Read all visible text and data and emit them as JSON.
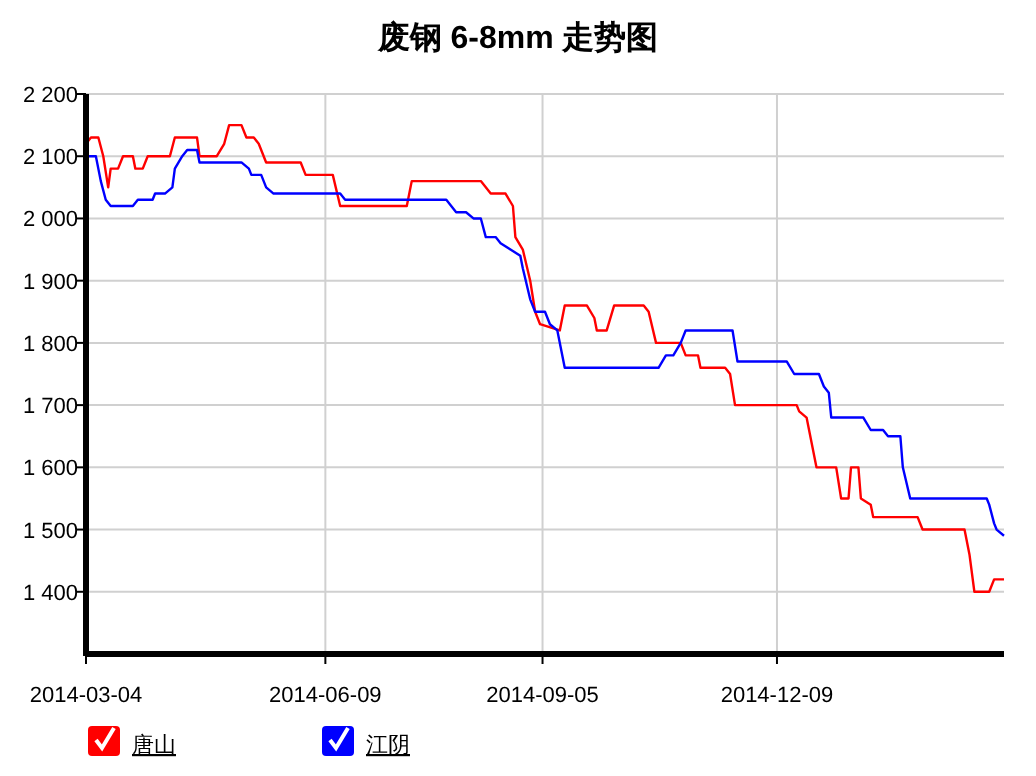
{
  "chart_data": {
    "type": "line",
    "title": "废钢 6-8mm 走势图",
    "xlim": [
      "2014-03-04",
      "2015-03-11"
    ],
    "xticks": [
      "2014-03-04",
      "2014-06-09",
      "2014-09-05",
      "2014-12-09"
    ],
    "ylim": [
      1300,
      2200
    ],
    "yticks": [
      {
        "value": 1400,
        "label": "1 400"
      },
      {
        "value": 1500,
        "label": "1 500"
      },
      {
        "value": 1600,
        "label": "1 600"
      },
      {
        "value": 1700,
        "label": "1 700"
      },
      {
        "value": 1800,
        "label": "1 800"
      },
      {
        "value": 1900,
        "label": "1 900"
      },
      {
        "value": 2000,
        "label": "2 000"
      },
      {
        "value": 2100,
        "label": "2 100"
      },
      {
        "value": 2200,
        "label": "2 200"
      }
    ],
    "grid": true,
    "legend": "bottom left",
    "series": [
      {
        "name": "唐山",
        "color": "#ff0000",
        "x": [
          "2014-03-04",
          "2014-03-06",
          "2014-03-09",
          "2014-03-11",
          "2014-03-13",
          "2014-03-14",
          "2014-03-17",
          "2014-03-19",
          "2014-03-23",
          "2014-03-24",
          "2014-03-27",
          "2014-03-29",
          "2014-04-07",
          "2014-04-09",
          "2014-04-18",
          "2014-04-19",
          "2014-04-26",
          "2014-04-29",
          "2014-05-01",
          "2014-05-06",
          "2014-05-08",
          "2014-05-11",
          "2014-05-13",
          "2014-05-16",
          "2014-05-30",
          "2014-06-01",
          "2014-06-12",
          "2014-06-15",
          "2014-07-12",
          "2014-07-14",
          "2014-08-11",
          "2014-08-13",
          "2014-08-15",
          "2014-08-21",
          "2014-08-24",
          "2014-08-25",
          "2014-08-28",
          "2014-08-31",
          "2014-09-02",
          "2014-09-04",
          "2014-09-12",
          "2014-09-14",
          "2014-09-23",
          "2014-09-26",
          "2014-09-27",
          "2014-10-01",
          "2014-10-04",
          "2014-10-16",
          "2014-10-18",
          "2014-10-21",
          "2014-10-31",
          "2014-11-02",
          "2014-11-07",
          "2014-11-08",
          "2014-11-18",
          "2014-11-20",
          "2014-11-22",
          "2014-12-17",
          "2014-12-18",
          "2014-12-21",
          "2014-12-25",
          "2015-01-02",
          "2015-01-04",
          "2015-01-07",
          "2015-01-08",
          "2015-01-11",
          "2015-01-12",
          "2015-01-16",
          "2015-01-17",
          "2015-02-04",
          "2015-02-06",
          "2015-02-23",
          "2015-02-25",
          "2015-02-27",
          "2015-03-05",
          "2015-03-07",
          "2015-03-11"
        ],
        "values": [
          2120,
          2130,
          2130,
          2100,
          2050,
          2080,
          2080,
          2100,
          2100,
          2080,
          2080,
          2100,
          2100,
          2130,
          2130,
          2100,
          2100,
          2120,
          2150,
          2150,
          2130,
          2130,
          2120,
          2090,
          2090,
          2070,
          2070,
          2020,
          2020,
          2060,
          2060,
          2050,
          2040,
          2040,
          2020,
          1970,
          1950,
          1900,
          1850,
          1830,
          1820,
          1860,
          1860,
          1840,
          1820,
          1820,
          1860,
          1860,
          1850,
          1800,
          1800,
          1780,
          1780,
          1760,
          1760,
          1750,
          1700,
          1700,
          1690,
          1680,
          1600,
          1600,
          1550,
          1550,
          1600,
          1600,
          1550,
          1540,
          1520,
          1520,
          1500,
          1500,
          1460,
          1400,
          1400,
          1420,
          1420
        ]
      },
      {
        "name": "江阴",
        "color": "#0000ff",
        "x": [
          "2014-03-05",
          "2014-03-08",
          "2014-03-10",
          "2014-03-12",
          "2014-03-14",
          "2014-03-23",
          "2014-03-25",
          "2014-03-31",
          "2014-04-01",
          "2014-04-05",
          "2014-04-08",
          "2014-04-09",
          "2014-04-12",
          "2014-04-14",
          "2014-04-18",
          "2014-04-19",
          "2014-05-06",
          "2014-05-09",
          "2014-05-10",
          "2014-05-14",
          "2014-05-16",
          "2014-05-19",
          "2014-06-15",
          "2014-06-17",
          "2014-07-28",
          "2014-08-01",
          "2014-08-05",
          "2014-08-08",
          "2014-08-11",
          "2014-08-13",
          "2014-08-17",
          "2014-08-19",
          "2014-08-23",
          "2014-08-27",
          "2014-08-28",
          "2014-08-31",
          "2014-09-02",
          "2014-09-06",
          "2014-09-08",
          "2014-09-11",
          "2014-09-14",
          "2014-10-22",
          "2014-10-25",
          "2014-10-28",
          "2014-10-31",
          "2014-11-01",
          "2014-11-02",
          "2014-11-21",
          "2014-11-23",
          "2014-12-13",
          "2014-12-16",
          "2014-12-26",
          "2014-12-28",
          "2014-12-30",
          "2014-12-31",
          "2015-01-13",
          "2015-01-16",
          "2015-01-21",
          "2015-01-23",
          "2015-01-28",
          "2015-01-29",
          "2015-02-01",
          "2015-03-04",
          "2015-03-05",
          "2015-03-07",
          "2015-03-08",
          "2015-03-11"
        ],
        "values": [
          2100,
          2100,
          2060,
          2030,
          2020,
          2020,
          2030,
          2030,
          2040,
          2040,
          2050,
          2080,
          2100,
          2110,
          2110,
          2090,
          2090,
          2080,
          2070,
          2070,
          2050,
          2040,
          2040,
          2030,
          2030,
          2010,
          2010,
          2000,
          2000,
          1970,
          1970,
          1960,
          1950,
          1940,
          1920,
          1870,
          1850,
          1850,
          1830,
          1820,
          1760,
          1760,
          1780,
          1780,
          1800,
          1810,
          1820,
          1820,
          1770,
          1770,
          1750,
          1750,
          1730,
          1720,
          1680,
          1680,
          1660,
          1660,
          1650,
          1650,
          1600,
          1550,
          1550,
          1540,
          1510,
          1500,
          1490
        ]
      }
    ]
  }
}
